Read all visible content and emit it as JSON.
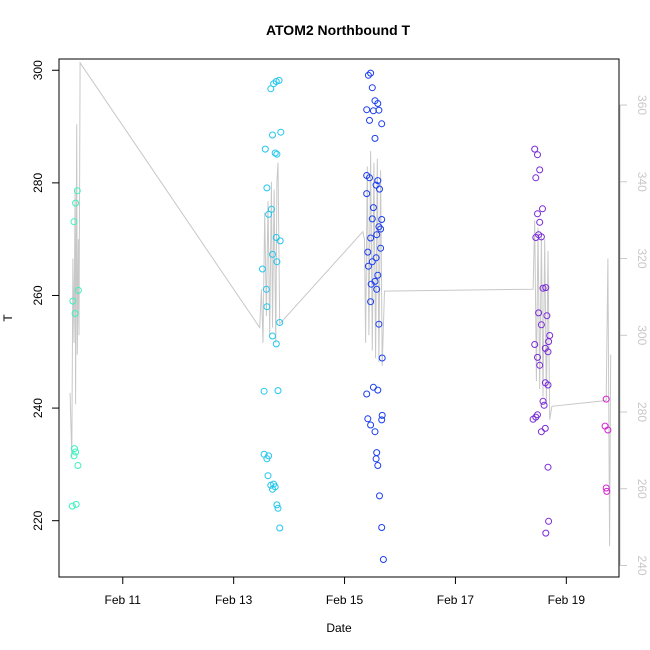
{
  "chart_data": {
    "type": "scatter",
    "title": "ATOM2 Northbound T",
    "xlabel": "Date",
    "ylabel": "T",
    "x_range_days": [
      9.85,
      19.95
    ],
    "ylim": [
      210,
      302
    ],
    "y2lim": [
      237,
      372
    ],
    "x_ticks": [
      {
        "day": 11,
        "label": "Feb 11"
      },
      {
        "day": 13,
        "label": "Feb 13"
      },
      {
        "day": 15,
        "label": "Feb 15"
      },
      {
        "day": 17,
        "label": "Feb 17"
      },
      {
        "day": 19,
        "label": "Feb 19"
      }
    ],
    "y_ticks": [
      220,
      240,
      260,
      280,
      300
    ],
    "y2_ticks": [
      240,
      260,
      280,
      300,
      320,
      340,
      360
    ],
    "colors": {
      "frame": "#000000",
      "right_axis": "#c8c8c8",
      "line": "#c8c8c8",
      "groups": [
        "#3ff0bf",
        "#22c6ee",
        "#1a3ef0",
        "#7a2ad8",
        "#d424d0"
      ]
    },
    "groups": [
      {
        "name": "group-1",
        "color_index": 0,
        "points": [
          [
            10.12,
            273.1
          ],
          [
            10.15,
            276.4
          ],
          [
            10.18,
            278.6
          ],
          [
            10.2,
            260.9
          ],
          [
            10.14,
            256.8
          ],
          [
            10.1,
            259.0
          ],
          [
            10.13,
            232.8
          ],
          [
            10.12,
            231.5
          ],
          [
            10.15,
            232.2
          ],
          [
            10.19,
            229.8
          ],
          [
            10.09,
            222.6
          ],
          [
            10.16,
            222.9
          ]
        ]
      },
      {
        "name": "group-2",
        "color_index": 1,
        "points": [
          [
            13.57,
            286.0
          ],
          [
            13.77,
            298.0
          ],
          [
            13.72,
            297.6
          ],
          [
            13.67,
            296.7
          ],
          [
            13.82,
            298.2
          ],
          [
            13.7,
            288.5
          ],
          [
            13.85,
            289.0
          ],
          [
            13.75,
            285.3
          ],
          [
            13.78,
            285.1
          ],
          [
            13.6,
            279.1
          ],
          [
            13.63,
            274.4
          ],
          [
            13.68,
            275.3
          ],
          [
            13.77,
            270.3
          ],
          [
            13.84,
            269.7
          ],
          [
            13.7,
            267.3
          ],
          [
            13.78,
            266.0
          ],
          [
            13.52,
            264.7
          ],
          [
            13.59,
            261.1
          ],
          [
            13.6,
            258.0
          ],
          [
            13.83,
            255.2
          ],
          [
            13.7,
            252.8
          ],
          [
            13.77,
            251.4
          ],
          [
            13.55,
            243.0
          ],
          [
            13.8,
            243.1
          ],
          [
            13.55,
            231.8
          ],
          [
            13.6,
            231.0
          ],
          [
            13.63,
            231.5
          ],
          [
            13.62,
            228.0
          ],
          [
            13.67,
            226.3
          ],
          [
            13.72,
            226.5
          ],
          [
            13.75,
            226.0
          ],
          [
            13.7,
            225.6
          ],
          [
            13.78,
            222.8
          ],
          [
            13.8,
            222.2
          ],
          [
            13.83,
            218.7
          ]
        ]
      },
      {
        "name": "group-3",
        "color_index": 2,
        "points": [
          [
            15.43,
            299.1
          ],
          [
            15.47,
            299.5
          ],
          [
            15.5,
            296.9
          ],
          [
            15.55,
            294.6
          ],
          [
            15.6,
            294.1
          ],
          [
            15.4,
            293.0
          ],
          [
            15.52,
            292.8
          ],
          [
            15.62,
            292.9
          ],
          [
            15.45,
            291.1
          ],
          [
            15.67,
            290.5
          ],
          [
            15.55,
            287.9
          ],
          [
            15.4,
            281.3
          ],
          [
            15.45,
            280.9
          ],
          [
            15.6,
            280.4
          ],
          [
            15.57,
            279.6
          ],
          [
            15.63,
            278.9
          ],
          [
            15.4,
            278.1
          ],
          [
            15.52,
            275.6
          ],
          [
            15.5,
            273.6
          ],
          [
            15.67,
            273.5
          ],
          [
            15.62,
            272.2
          ],
          [
            15.65,
            271.8
          ],
          [
            15.58,
            270.8
          ],
          [
            15.47,
            270.2
          ],
          [
            15.42,
            267.7
          ],
          [
            15.65,
            268.4
          ],
          [
            15.57,
            266.7
          ],
          [
            15.5,
            266.0
          ],
          [
            15.43,
            265.2
          ],
          [
            15.6,
            263.6
          ],
          [
            15.55,
            262.5
          ],
          [
            15.48,
            262.0
          ],
          [
            15.58,
            261.1
          ],
          [
            15.47,
            258.9
          ],
          [
            15.62,
            254.9
          ],
          [
            15.68,
            248.9
          ],
          [
            15.52,
            243.7
          ],
          [
            15.6,
            243.2
          ],
          [
            15.4,
            242.5
          ],
          [
            15.42,
            238.1
          ],
          [
            15.68,
            238.7
          ],
          [
            15.67,
            237.9
          ],
          [
            15.47,
            237.0
          ],
          [
            15.55,
            235.8
          ],
          [
            15.58,
            232.1
          ],
          [
            15.57,
            231.0
          ],
          [
            15.6,
            229.8
          ],
          [
            15.63,
            224.4
          ],
          [
            15.67,
            218.8
          ],
          [
            15.7,
            213.1
          ]
        ]
      },
      {
        "name": "group-4",
        "color_index": 3,
        "points": [
          [
            18.43,
            286.0
          ],
          [
            18.48,
            285.0
          ],
          [
            18.52,
            282.3
          ],
          [
            18.45,
            280.9
          ],
          [
            18.48,
            274.5
          ],
          [
            18.57,
            275.4
          ],
          [
            18.52,
            273.0
          ],
          [
            18.45,
            270.3
          ],
          [
            18.5,
            270.8
          ],
          [
            18.55,
            270.4
          ],
          [
            18.58,
            261.3
          ],
          [
            18.63,
            261.4
          ],
          [
            18.5,
            256.9
          ],
          [
            18.65,
            256.4
          ],
          [
            18.55,
            254.8
          ],
          [
            18.7,
            252.9
          ],
          [
            18.68,
            251.8
          ],
          [
            18.43,
            251.3
          ],
          [
            18.62,
            250.6
          ],
          [
            18.67,
            250.0
          ],
          [
            18.48,
            249.0
          ],
          [
            18.52,
            247.6
          ],
          [
            18.62,
            244.5
          ],
          [
            18.67,
            244.1
          ],
          [
            18.58,
            241.2
          ],
          [
            18.6,
            240.5
          ],
          [
            18.45,
            238.4
          ],
          [
            18.48,
            238.8
          ],
          [
            18.4,
            238.0
          ],
          [
            18.62,
            236.4
          ],
          [
            18.55,
            235.8
          ],
          [
            18.67,
            229.5
          ],
          [
            18.68,
            219.9
          ],
          [
            18.63,
            217.8
          ]
        ]
      },
      {
        "name": "group-5",
        "color_index": 4,
        "points": [
          [
            19.72,
            241.6
          ],
          [
            19.7,
            236.8
          ],
          [
            19.75,
            236.1
          ],
          [
            19.72,
            225.8
          ],
          [
            19.73,
            225.2
          ]
        ]
      }
    ],
    "line_y2": [
      [
        10.05,
        285.0
      ],
      [
        10.08,
        268.0
      ],
      [
        10.1,
        320.0
      ],
      [
        10.12,
        298.0
      ],
      [
        10.14,
        338.0
      ],
      [
        10.15,
        282.0
      ],
      [
        10.17,
        355.0
      ],
      [
        10.18,
        295.0
      ],
      [
        10.2,
        325.0
      ],
      [
        10.21,
        300.0
      ],
      [
        10.23,
        371.0
      ],
      [
        13.47,
        302.0
      ],
      [
        13.5,
        312.0
      ],
      [
        13.53,
        298.0
      ],
      [
        13.56,
        332.0
      ],
      [
        13.59,
        305.0
      ],
      [
        13.62,
        335.0
      ],
      [
        13.65,
        300.0
      ],
      [
        13.68,
        340.0
      ],
      [
        13.7,
        302.0
      ],
      [
        13.73,
        338.0
      ],
      [
        13.76,
        298.0
      ],
      [
        13.78,
        340.0
      ],
      [
        13.8,
        345.0
      ],
      [
        13.83,
        303.0
      ],
      [
        15.33,
        327.0
      ],
      [
        15.36,
        325.0
      ],
      [
        15.38,
        298.0
      ],
      [
        15.41,
        344.0
      ],
      [
        15.44,
        300.0
      ],
      [
        15.47,
        348.0
      ],
      [
        15.5,
        296.0
      ],
      [
        15.53,
        345.0
      ],
      [
        15.56,
        294.0
      ],
      [
        15.59,
        346.0
      ],
      [
        15.62,
        293.0
      ],
      [
        15.65,
        343.0
      ],
      [
        15.68,
        292.0
      ],
      [
        15.72,
        311.5
      ],
      [
        18.4,
        312.0
      ],
      [
        18.43,
        330.0
      ],
      [
        18.46,
        288.0
      ],
      [
        18.49,
        328.0
      ],
      [
        18.52,
        286.0
      ],
      [
        18.55,
        326.0
      ],
      [
        18.58,
        284.0
      ],
      [
        18.61,
        325.0
      ],
      [
        18.64,
        282.0
      ],
      [
        18.67,
        322.0
      ],
      [
        18.7,
        278.0
      ],
      [
        18.74,
        281.5
      ],
      [
        19.72,
        283.0
      ],
      [
        19.75,
        320.0
      ],
      [
        19.78,
        245.0
      ],
      [
        19.8,
        295.0
      ]
    ]
  }
}
